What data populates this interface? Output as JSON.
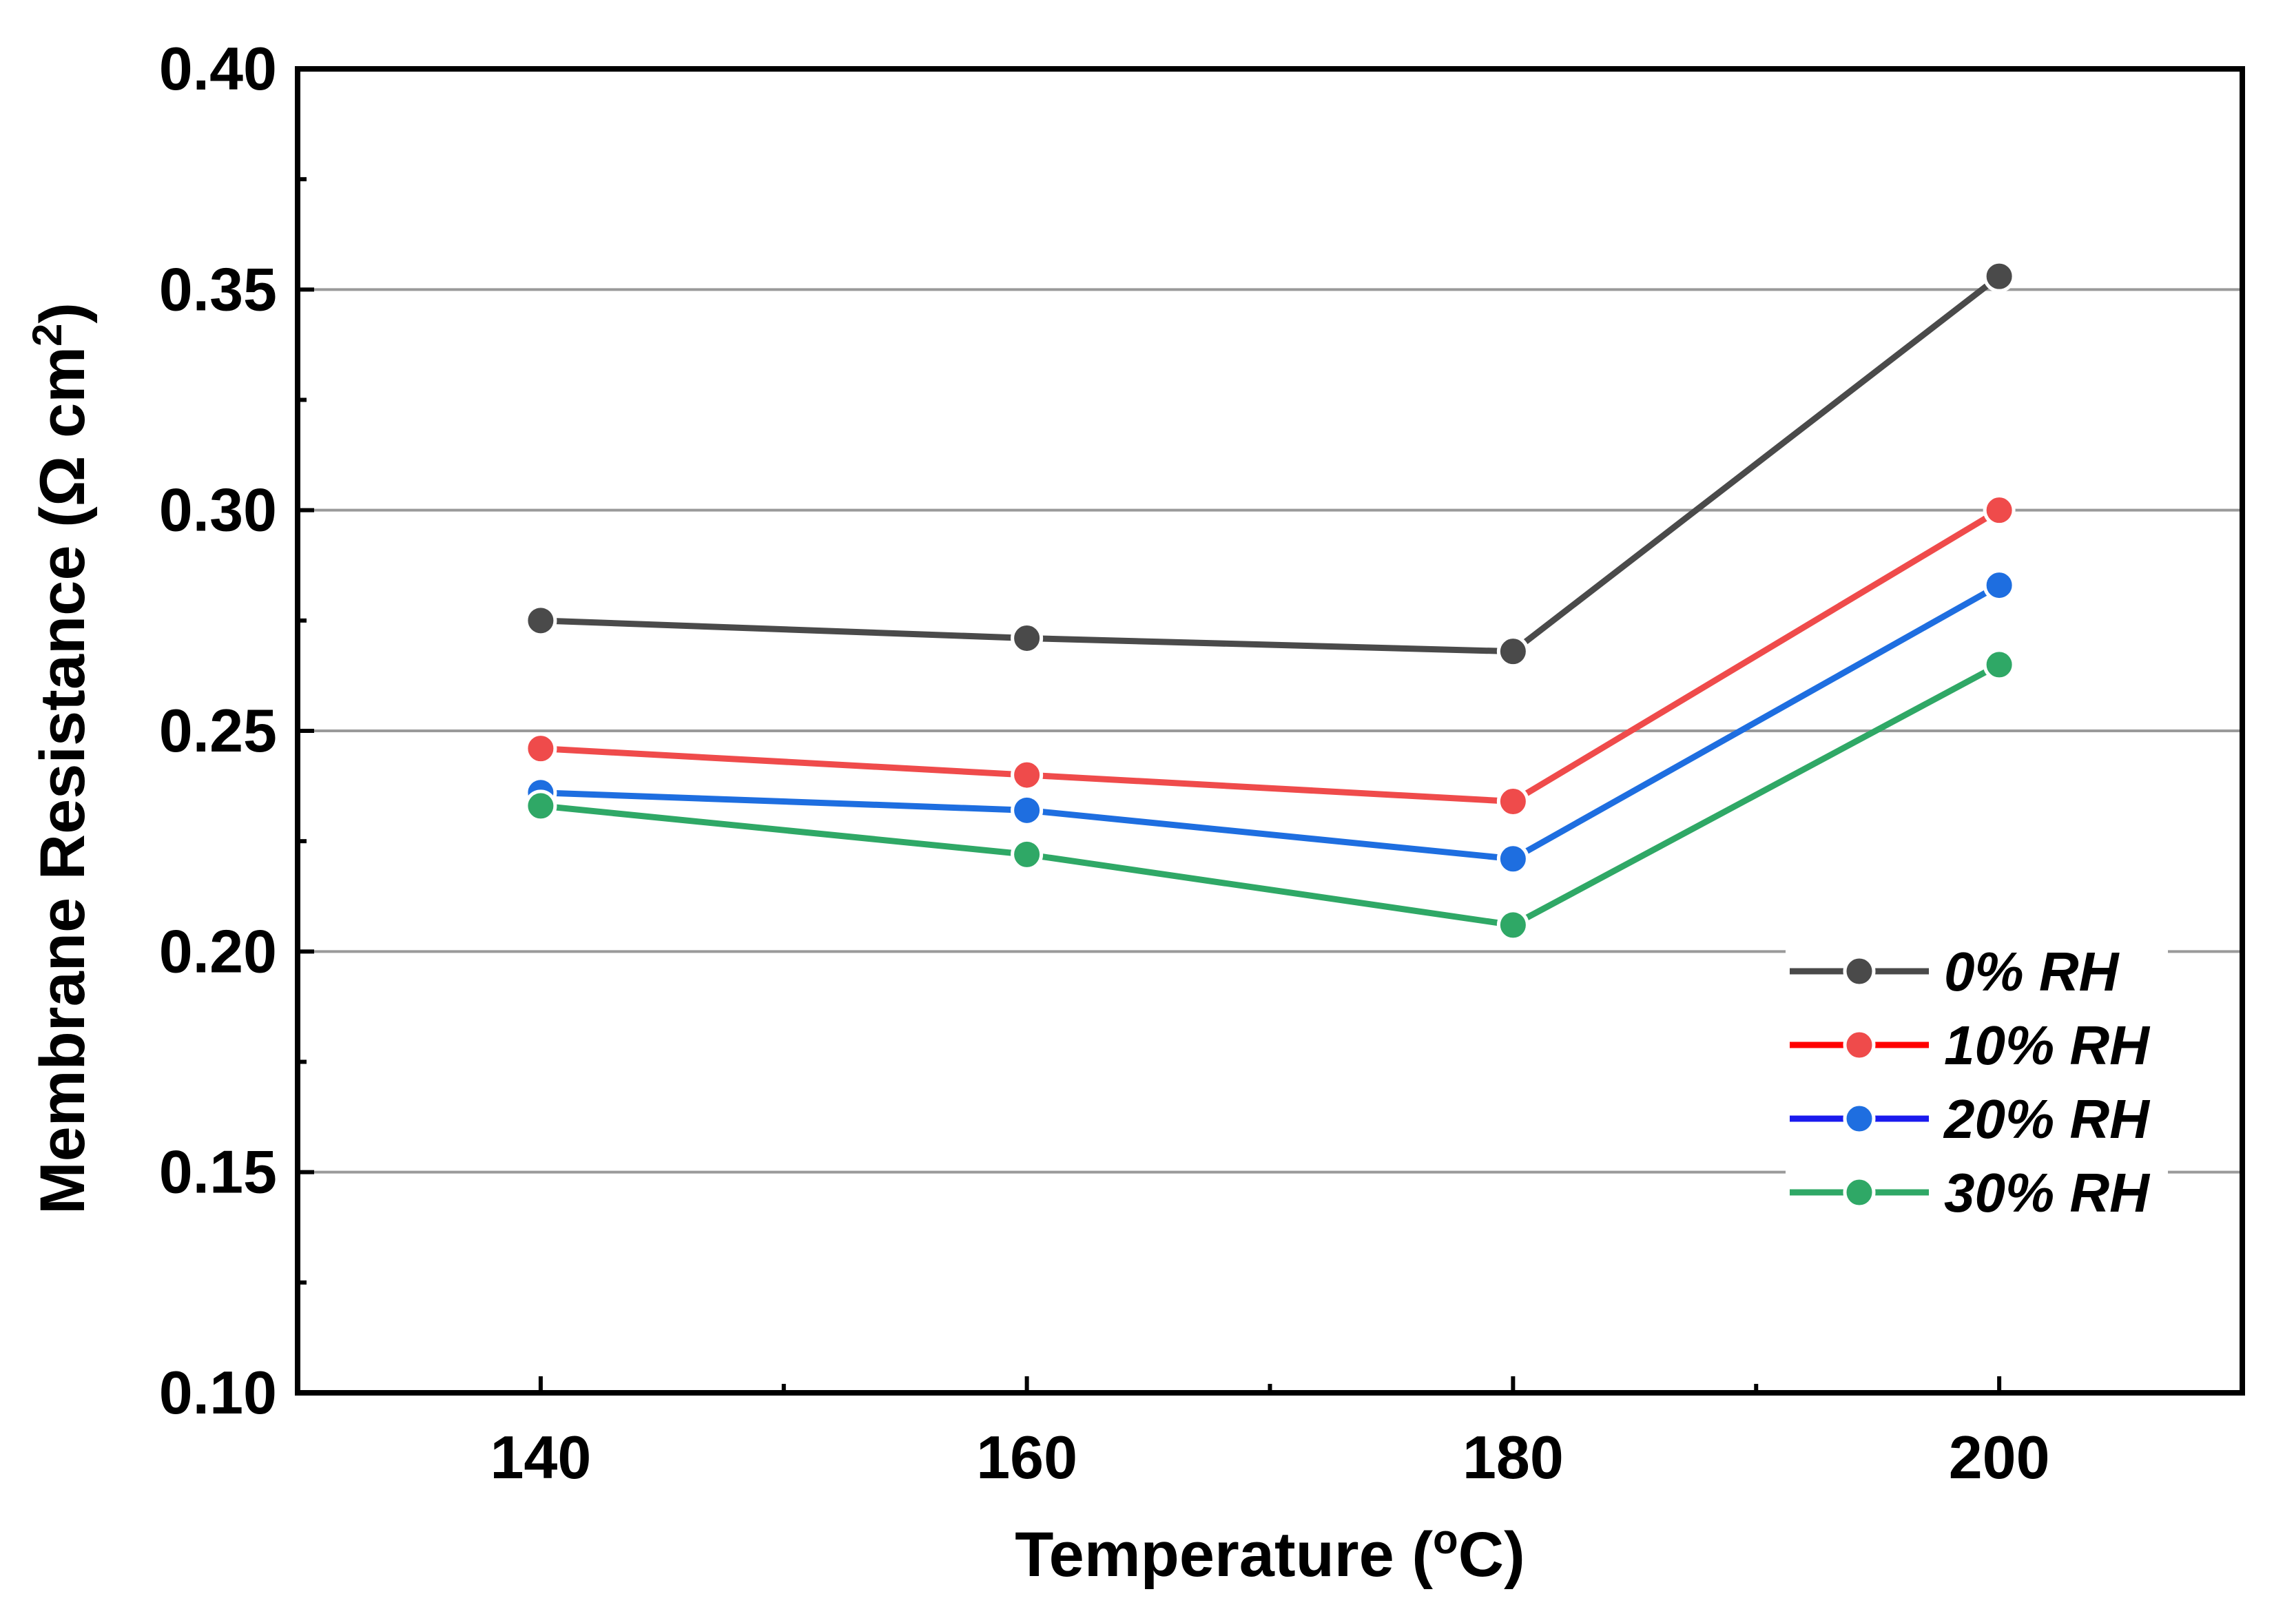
{
  "chart_data": {
    "type": "line",
    "title": "",
    "xlabel": "Temperature (oC)",
    "xlabel_parts": {
      "main": "Temperature (",
      "sup": "o",
      "tail": "C)"
    },
    "ylabel": "Membrane Resistance (Ω cm2)",
    "ylabel_parts": {
      "main": "Membrane Resistance (Ω cm",
      "sup": "2",
      "tail": ")"
    },
    "x": [
      140,
      160,
      180,
      200
    ],
    "xlim": [
      130,
      210
    ],
    "ylim": [
      0.1,
      0.4
    ],
    "xticks": [
      "140",
      "160",
      "180",
      "200"
    ],
    "yticks": [
      "0.10",
      "0.15",
      "0.20",
      "0.25",
      "0.30",
      "0.35",
      "0.40"
    ],
    "grid": "horizontal",
    "legend_position": "bottom-right",
    "series": [
      {
        "name": "0% RH",
        "values": [
          0.275,
          0.271,
          0.268,
          0.353
        ],
        "color": "#4a4a4a",
        "legend_color": "#4a4a4a"
      },
      {
        "name": "10% RH",
        "values": [
          0.246,
          0.24,
          0.234,
          0.3
        ],
        "color": "#ef4b4b",
        "legend_color": "#ff0000"
      },
      {
        "name": "20% RH",
        "values": [
          0.236,
          0.232,
          0.221,
          0.283
        ],
        "color": "#1e6ee0",
        "legend_color": "#1a1aee"
      },
      {
        "name": "30% RH",
        "values": [
          0.233,
          0.222,
          0.206,
          0.265
        ],
        "color": "#2fa866",
        "legend_color": "#2fa866"
      }
    ]
  }
}
